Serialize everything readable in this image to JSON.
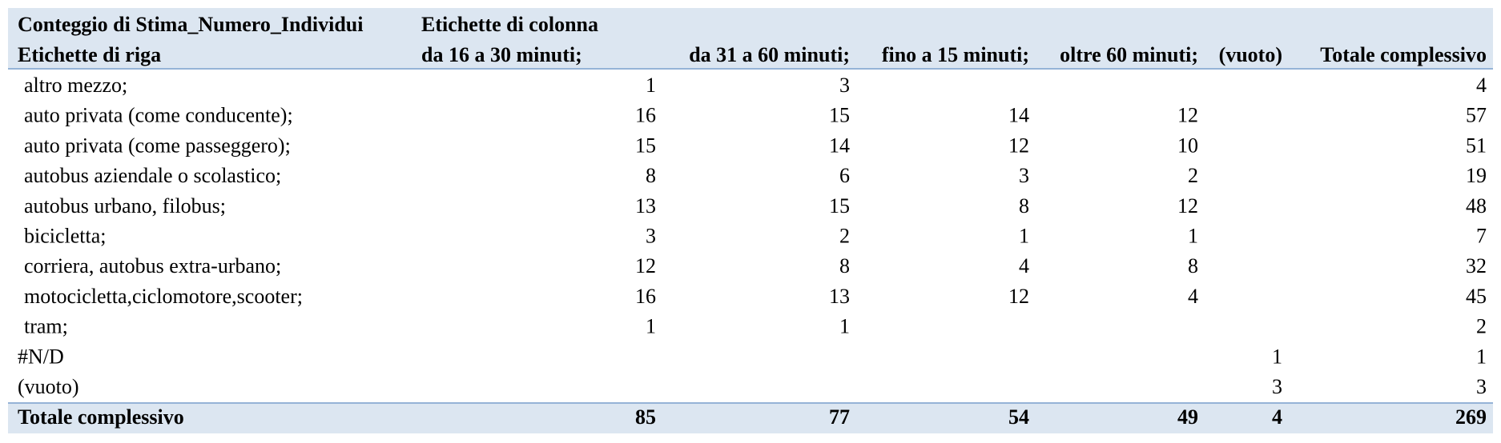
{
  "table": {
    "header": {
      "corner_title": "Conteggio di Stima_Numero_Individui",
      "column_title": "Etichette di colonna",
      "row_title": "Etichette di riga",
      "columns": [
        "da 16 a 30 minuti;",
        "da 31 a 60 minuti;",
        "fino a 15 minuti;",
        "oltre 60 minuti;",
        "(vuoto)",
        "Totale complessivo"
      ]
    },
    "rows": [
      {
        "label": "altro mezzo;",
        "values": [
          1,
          3,
          null,
          null,
          null,
          4
        ]
      },
      {
        "label": "auto privata (come conducente);",
        "values": [
          16,
          15,
          14,
          12,
          null,
          57
        ]
      },
      {
        "label": "auto privata (come passeggero);",
        "values": [
          15,
          14,
          12,
          10,
          null,
          51
        ]
      },
      {
        "label": "autobus aziendale o scolastico;",
        "values": [
          8,
          6,
          3,
          2,
          null,
          19
        ]
      },
      {
        "label": "autobus urbano, filobus;",
        "values": [
          13,
          15,
          8,
          12,
          null,
          48
        ]
      },
      {
        "label": "bicicletta;",
        "values": [
          3,
          2,
          1,
          1,
          null,
          7
        ]
      },
      {
        "label": "corriera, autobus extra-urbano;",
        "values": [
          12,
          8,
          4,
          8,
          null,
          32
        ]
      },
      {
        "label": "motocicletta,ciclomotore,scooter;",
        "values": [
          16,
          13,
          12,
          4,
          null,
          45
        ]
      },
      {
        "label": "tram;",
        "values": [
          1,
          1,
          null,
          null,
          null,
          2
        ]
      },
      {
        "label": "#N/D",
        "values": [
          null,
          null,
          null,
          null,
          1,
          1
        ]
      },
      {
        "label": "(vuoto)",
        "values": [
          null,
          null,
          null,
          null,
          3,
          3
        ]
      }
    ],
    "total": {
      "label": "Totale complessivo",
      "values": [
        85,
        77,
        54,
        49,
        4,
        269
      ]
    }
  }
}
